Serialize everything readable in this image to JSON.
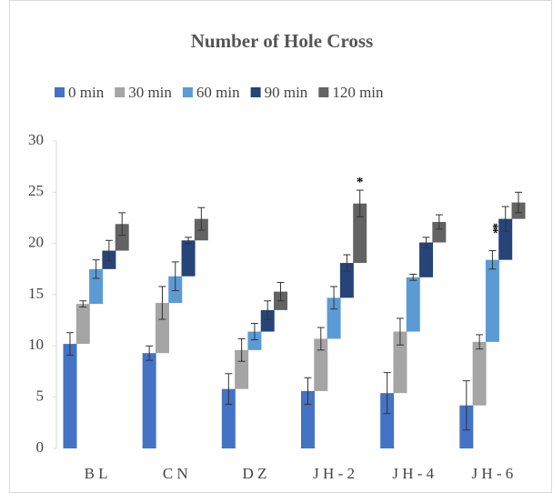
{
  "chart_data": {
    "type": "bar",
    "title": "Number of Hole Cross",
    "categories": [
      "B L",
      "C N",
      "D Z",
      "J H - 2",
      "J H - 4",
      "J H - 6"
    ],
    "series": [
      {
        "name": "0 min",
        "color": "#4472c4",
        "values": [
          10.2,
          9.3,
          5.8,
          5.6,
          5.4,
          4.2
        ],
        "errors": [
          1.1,
          0.7,
          1.5,
          1.3,
          2.0,
          2.4
        ]
      },
      {
        "name": "30 min",
        "color": "#a5a5a5",
        "values": [
          14.1,
          14.2,
          9.6,
          10.7,
          11.4,
          10.4
        ],
        "errors": [
          0.3,
          1.6,
          1.1,
          1.1,
          1.3,
          0.7
        ]
      },
      {
        "name": "60 min",
        "color": "#5b9bd5",
        "values": [
          17.5,
          16.8,
          11.4,
          14.7,
          16.7,
          18.4
        ],
        "errors": [
          0.9,
          1.4,
          0.8,
          1.1,
          0.3,
          0.9
        ]
      },
      {
        "name": "90 min",
        "color": "#264478",
        "values": [
          19.3,
          20.3,
          13.5,
          18.1,
          20.1,
          22.4
        ],
        "errors": [
          1.0,
          0.3,
          0.9,
          0.8,
          0.5,
          1.2
        ]
      },
      {
        "name": "120 min",
        "color": "#636363",
        "values": [
          21.9,
          22.4,
          15.3,
          23.9,
          22.1,
          24.0
        ],
        "errors": [
          1.1,
          1.1,
          0.9,
          1.3,
          0.7,
          1.0
        ]
      }
    ],
    "ylim": [
      0,
      30
    ],
    "yticks": [
      0,
      5,
      10,
      15,
      20,
      25,
      30
    ],
    "grid": false,
    "legend": "top",
    "annotations": [
      {
        "text": "*",
        "category": 3,
        "series": 4
      },
      {
        "text": "**",
        "category": 5,
        "series": 2
      }
    ]
  }
}
